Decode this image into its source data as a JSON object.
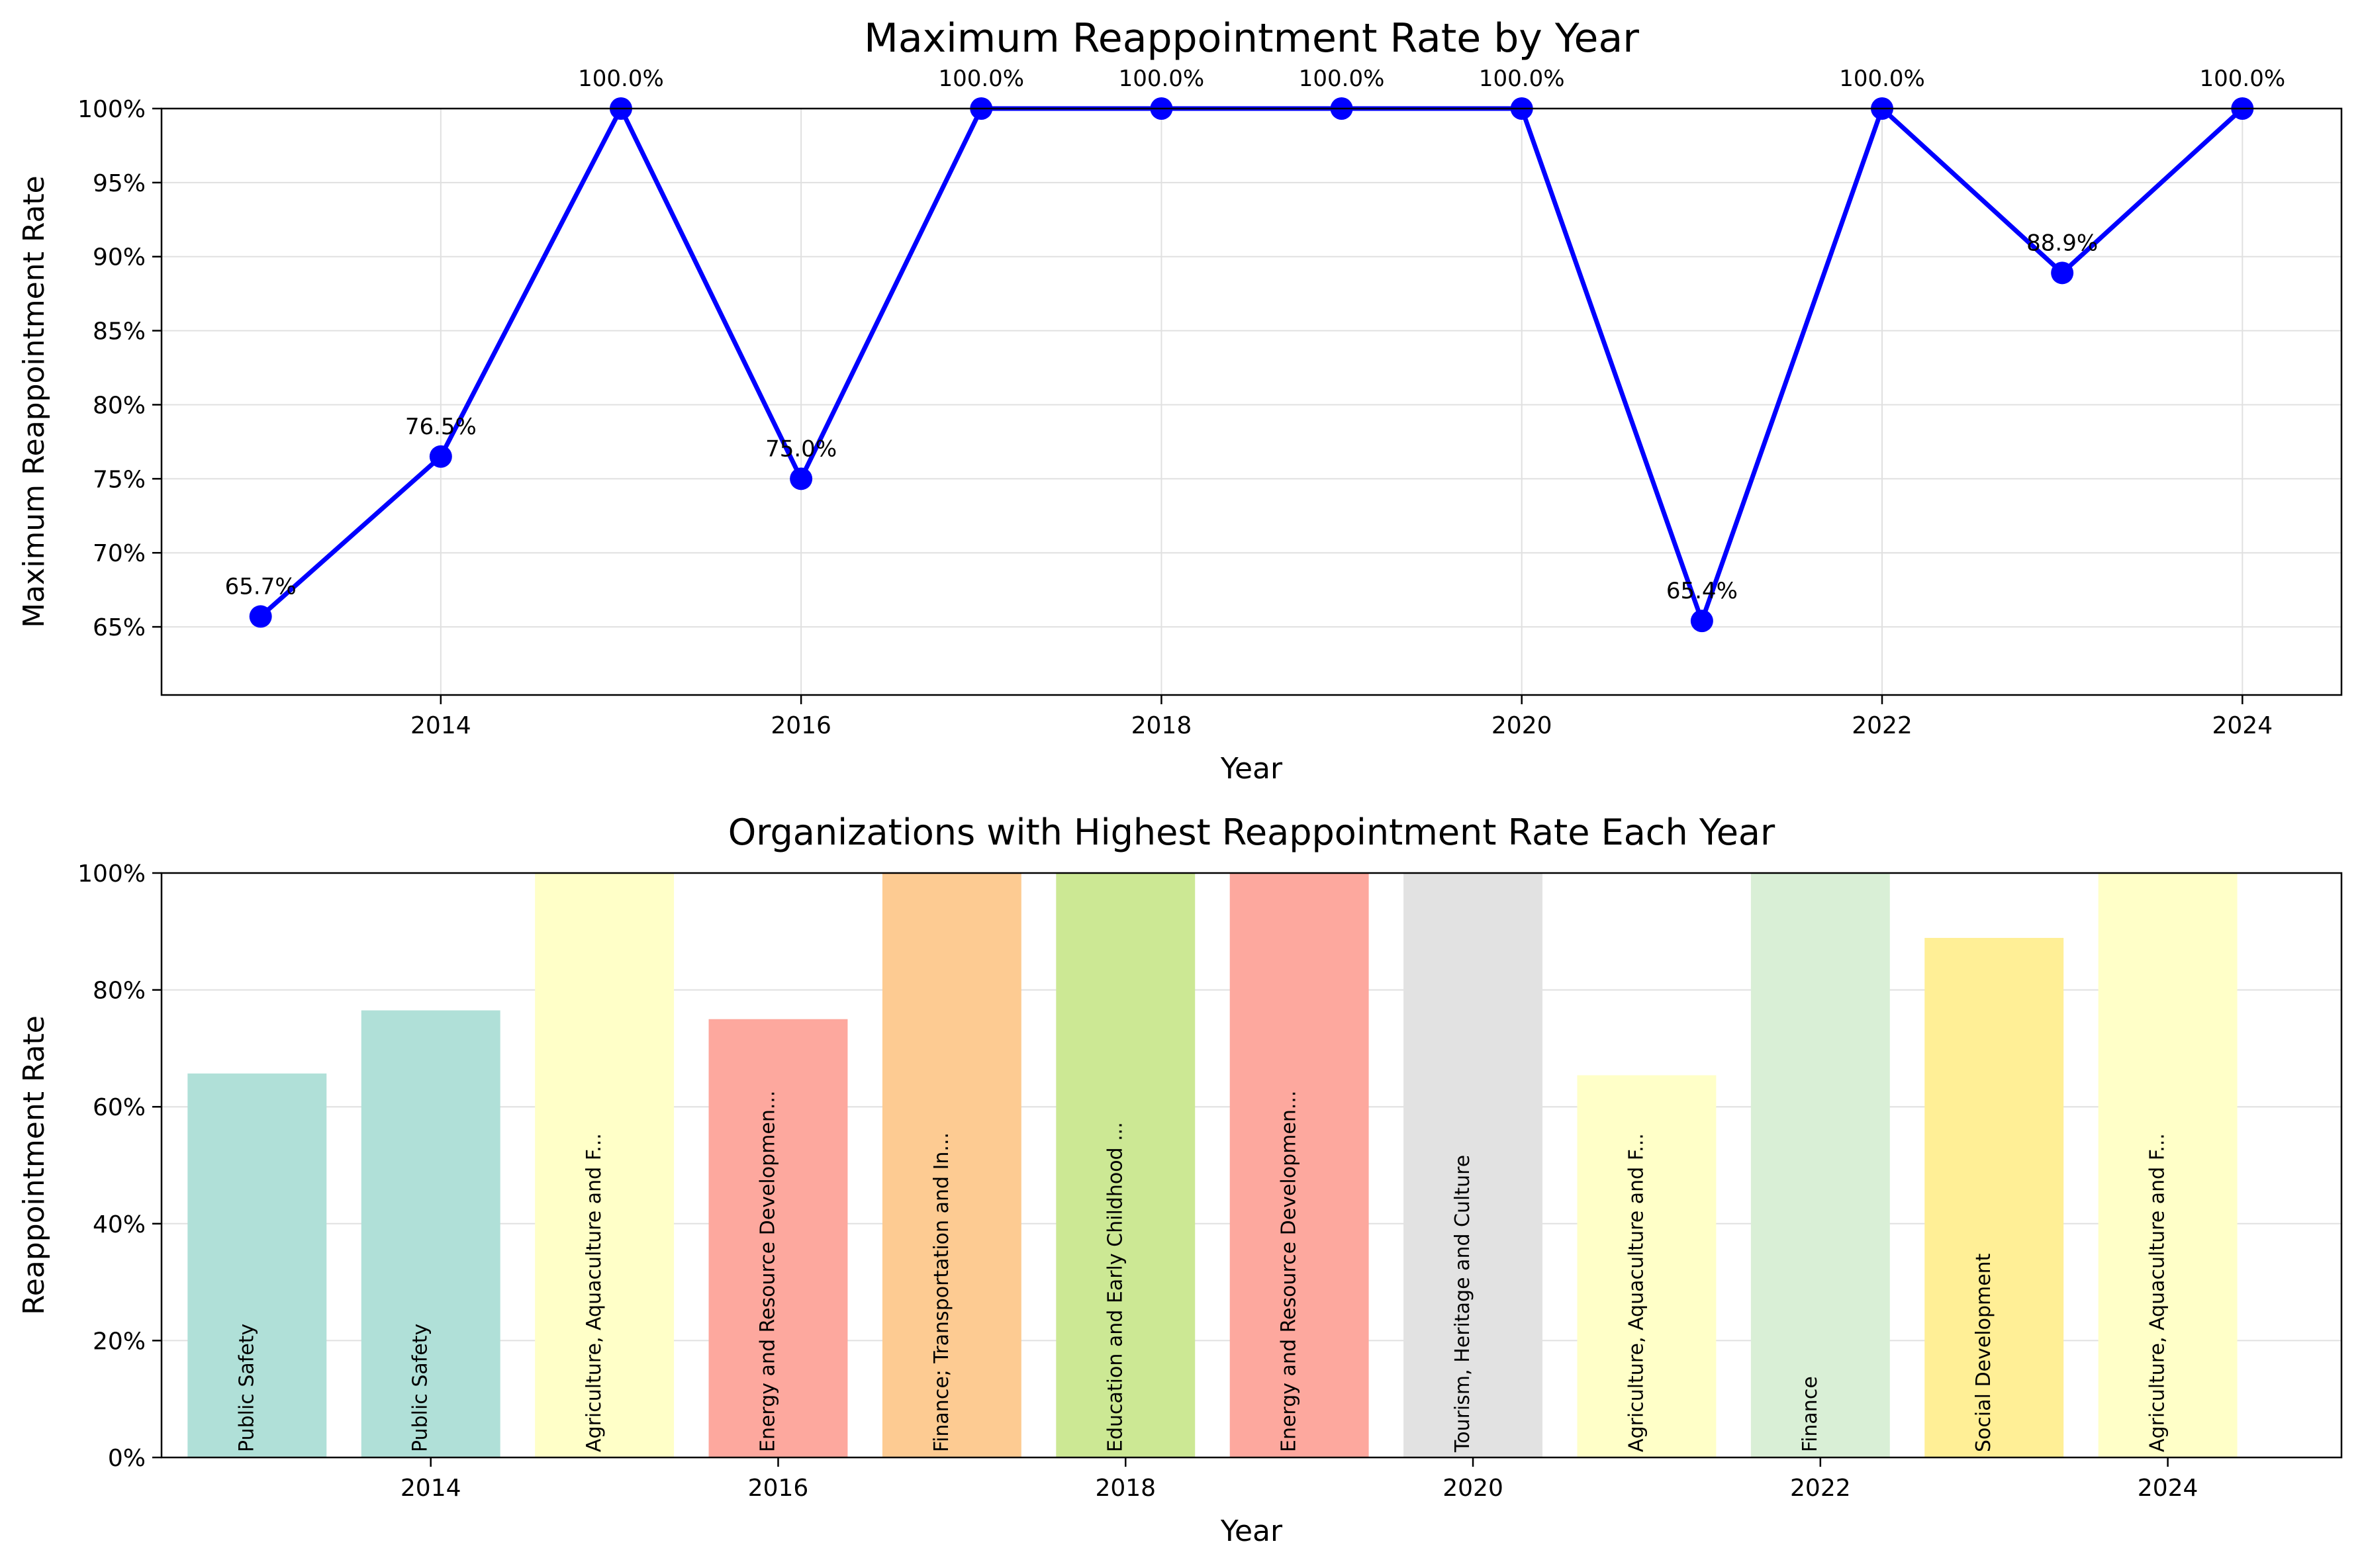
{
  "colors": {
    "line": "#0000ff",
    "grid": "#e0e0e0",
    "axis": "#000000"
  },
  "chart_data": [
    {
      "type": "line",
      "title": "Maximum Reappointment Rate by Year",
      "xlabel": "Year",
      "ylabel": "Maximum Reappointment Rate",
      "x": [
        2013,
        2014,
        2015,
        2016,
        2017,
        2018,
        2019,
        2020,
        2021,
        2022,
        2023,
        2024
      ],
      "values": [
        65.7,
        76.5,
        100.0,
        75.0,
        100.0,
        100.0,
        100.0,
        100.0,
        65.4,
        100.0,
        88.9,
        100.0
      ],
      "data_labels": [
        "65.7%",
        "76.5%",
        "100.0%",
        "75.0%",
        "100.0%",
        "100.0%",
        "100.0%",
        "100.0%",
        "65.4%",
        "100.0%",
        "88.9%",
        "100.0%"
      ],
      "xlim": [
        2012.45,
        2024.55
      ],
      "ylim": [
        60.4,
        100
      ],
      "xticks": [
        2014,
        2016,
        2018,
        2020,
        2022,
        2024
      ],
      "yticks": [
        65,
        70,
        75,
        80,
        85,
        90,
        95,
        100
      ],
      "ytick_labels": [
        "65%",
        "70%",
        "75%",
        "80%",
        "85%",
        "90%",
        "95%",
        "100%"
      ],
      "grid": true,
      "marker": "circle"
    },
    {
      "type": "bar",
      "title": "Organizations with Highest Reappointment Rate Each Year",
      "xlabel": "Year",
      "ylabel": "Reappointment Rate",
      "x": [
        2013,
        2014,
        2015,
        2016,
        2017,
        2018,
        2019,
        2020,
        2021,
        2022,
        2023,
        2024
      ],
      "values": [
        65.7,
        76.5,
        100.0,
        75.0,
        100.0,
        100.0,
        100.0,
        100.0,
        65.4,
        100.0,
        88.9,
        100.0
      ],
      "bar_labels": [
        "Public Safety",
        "Public Safety",
        "Agriculture, Aquaculture and F...",
        "Energy and Resource Developmen...",
        "Finance; Transportation and In...",
        "Education and Early Childhood ...",
        "Energy and Resource Developmen...",
        "Tourism, Heritage and Culture",
        "Agriculture, Aquaculture and F...",
        "Finance",
        "Social Development",
        "Agriculture, Aquaculture and F..."
      ],
      "bar_colors": [
        "#b0e0d8",
        "#b0e0d8",
        "#ffffc8",
        "#fda89e",
        "#fdcb92",
        "#cce894",
        "#fda89e",
        "#e2e2e2",
        "#ffffc8",
        "#d9efd6",
        "#ffef96",
        "#ffffc8"
      ],
      "xlim": [
        2012.45,
        2025.0
      ],
      "ylim": [
        0,
        100
      ],
      "xticks": [
        2014,
        2016,
        2018,
        2020,
        2022,
        2024
      ],
      "yticks": [
        0,
        20,
        40,
        60,
        80,
        100
      ],
      "ytick_labels": [
        "0%",
        "20%",
        "40%",
        "60%",
        "80%",
        "100%"
      ],
      "grid": true
    }
  ]
}
